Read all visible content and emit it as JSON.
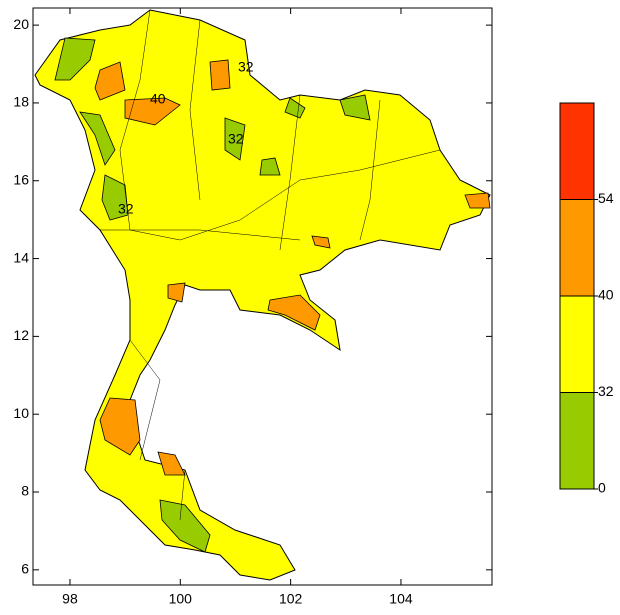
{
  "map": {
    "xlim": [
      97.33,
      105.65
    ],
    "ylim": [
      5.61,
      20.44
    ],
    "xticks": [
      98,
      100,
      102,
      104
    ],
    "yticks": [
      6,
      8,
      10,
      12,
      14,
      16,
      18,
      20
    ],
    "contour_labels": [
      40,
      32,
      32,
      32
    ],
    "legend": {
      "levels": [
        0,
        32,
        40,
        54
      ],
      "colors": [
        "#99cc00",
        "#ffff00",
        "#ff9900",
        "#ff3300"
      ]
    }
  }
}
